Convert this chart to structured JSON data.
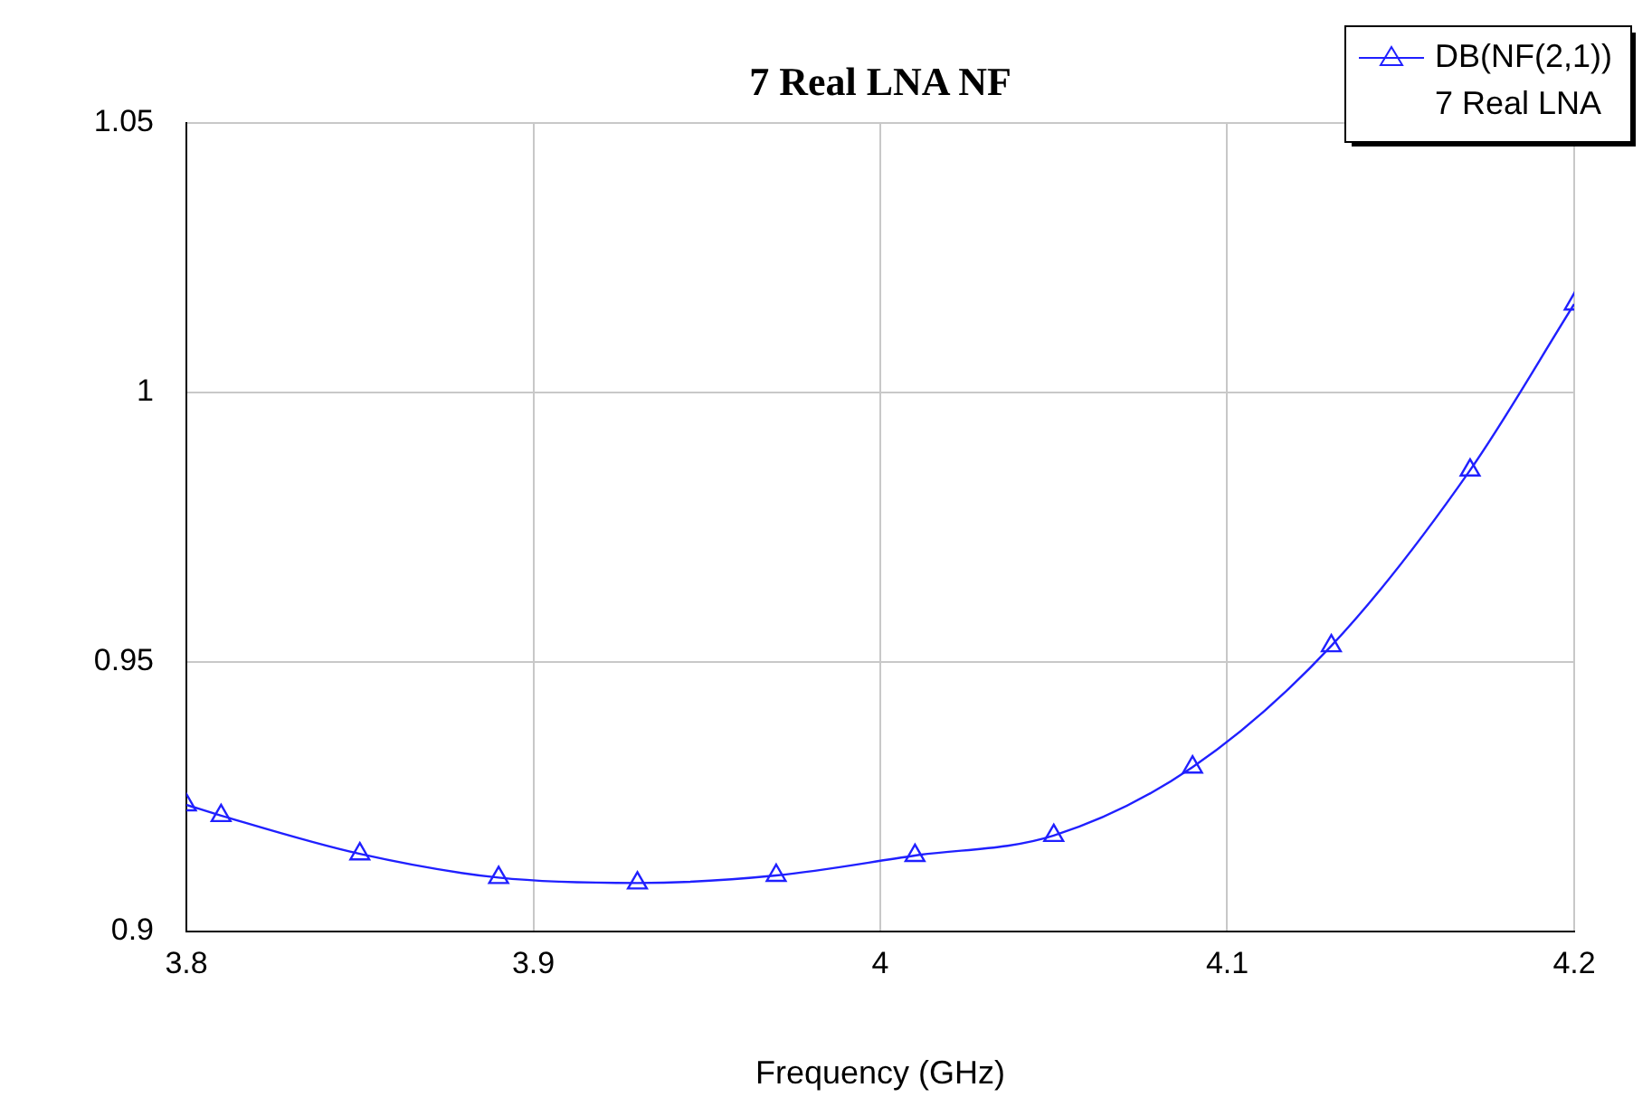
{
  "chart_data": {
    "type": "line",
    "title": "7 Real LNA NF",
    "xlabel": "Frequency (GHz)",
    "legend_title": "7 Real LNA",
    "series": [
      {
        "name": "DB(NF(2,1))",
        "color": "#2020ff",
        "x": [
          3.8,
          3.81,
          3.85,
          3.89,
          3.93,
          3.97,
          4.01,
          4.05,
          4.09,
          4.13,
          4.17,
          4.2
        ],
        "values": [
          0.9235,
          0.9215,
          0.9144,
          0.91,
          0.909,
          0.9104,
          0.9141,
          0.9178,
          0.9305,
          0.953,
          0.9856,
          1.0164
        ]
      }
    ],
    "xlim": [
      3.8,
      4.2
    ],
    "xticks": [
      3.8,
      3.9,
      4,
      4.1,
      4.2
    ],
    "ylim": [
      0.9,
      1.05
    ],
    "yticks": [
      0.9,
      0.95,
      1,
      1.05
    ],
    "grid": true,
    "legend": "top right",
    "marker": "triangle",
    "line_style": "solid"
  }
}
